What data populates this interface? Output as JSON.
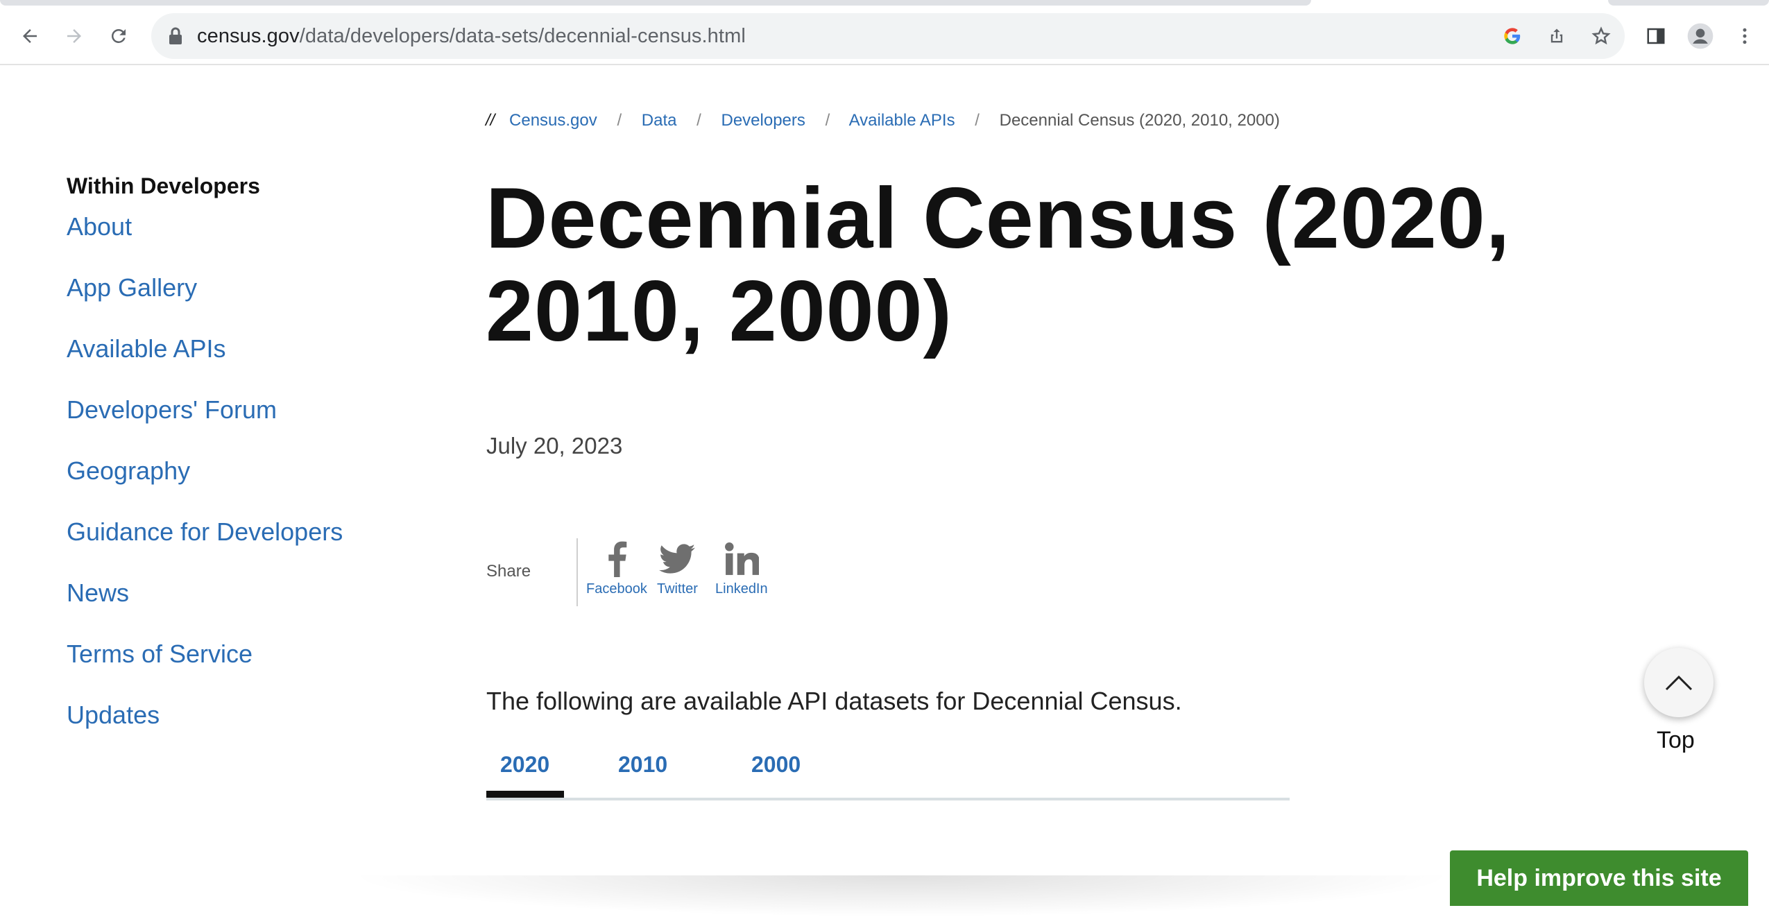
{
  "browser": {
    "url_host": "census.gov",
    "url_path": "/data/developers/data-sets/decennial-census.html"
  },
  "breadcrumb": {
    "prefix": "//",
    "items": [
      "Census.gov",
      "Data",
      "Developers",
      "Available APIs"
    ],
    "current": "Decennial Census (2020, 2010, 2000)"
  },
  "sidebar": {
    "heading": "Within Developers",
    "items": [
      {
        "label": "About"
      },
      {
        "label": "App Gallery"
      },
      {
        "label": "Available APIs"
      },
      {
        "label": "Developers' Forum"
      },
      {
        "label": "Geography"
      },
      {
        "label": "Guidance for Developers"
      },
      {
        "label": "News"
      },
      {
        "label": "Terms of Service"
      },
      {
        "label": "Updates"
      }
    ]
  },
  "main": {
    "title": "Decennial Census (2020, 2010, 2000)",
    "date": "July 20, 2023",
    "share": {
      "label": "Share",
      "facebook": "Facebook",
      "twitter": "Twitter",
      "linkedin": "LinkedIn"
    },
    "intro": "The following are available API datasets for Decennial Census.",
    "tabs": [
      {
        "label": "2020",
        "active": true
      },
      {
        "label": "2010",
        "active": false
      },
      {
        "label": "2000",
        "active": false
      }
    ]
  },
  "floating": {
    "top_label": "Top",
    "feedback_label": "Help improve this site"
  },
  "colors": {
    "link": "#2a6cb4",
    "feedback_green": "#3e8c2e",
    "text": "#111111"
  },
  "icons": {
    "back": "arrow-left-icon",
    "forward": "arrow-right-icon",
    "reload": "reload-icon",
    "lock": "lock-icon",
    "google": "google-g-icon",
    "share": "share-icon",
    "bookmark": "star-icon",
    "side_panel": "side-panel-icon",
    "profile": "profile-icon",
    "menu": "kebab-menu-icon",
    "top": "chevron-up-icon"
  }
}
